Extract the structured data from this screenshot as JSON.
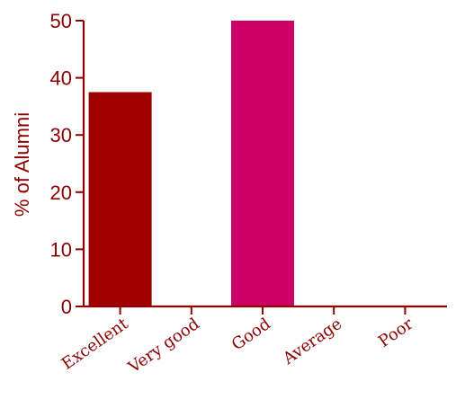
{
  "chart_data": {
    "type": "bar",
    "categories": [
      "Excellent",
      "Very good",
      "Good",
      "Average",
      "Poor"
    ],
    "values": [
      37.5,
      0,
      50,
      0,
      0
    ],
    "bar_colors": [
      "#a00000",
      "#a00000",
      "#cc0066",
      "#a00000",
      "#a00000"
    ],
    "ylabel": "% of Alumni",
    "xlabel": "",
    "title": "",
    "ylim": [
      0,
      50
    ],
    "yticks": [
      0,
      10,
      20,
      30,
      40,
      50
    ],
    "grid": false,
    "legend": "none",
    "colors": {
      "axis": "#8b0000",
      "text": "#8b0000"
    }
  }
}
